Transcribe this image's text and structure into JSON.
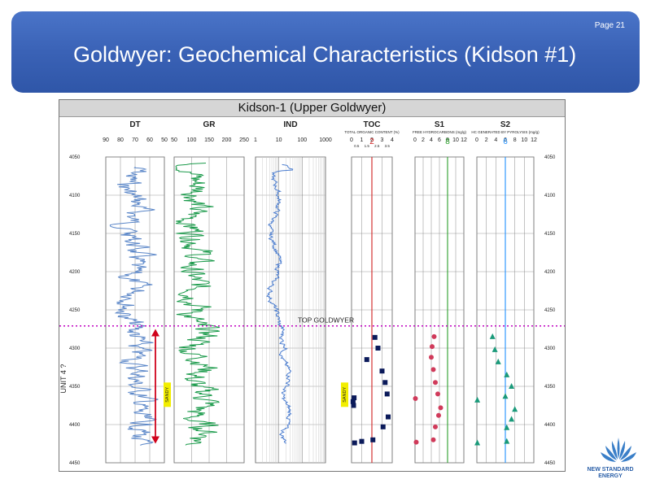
{
  "slide": {
    "page_number": "Page 21",
    "title": "Goldwyer: Geochemical Characteristics (Kidson #1)"
  },
  "logo": {
    "text_line1": "NEW STANDARD",
    "text_line2": "ENERGY"
  },
  "colors": {
    "banner": "#3a62b6",
    "dt_curve": "#5a86c8",
    "gr_curve": "#1a9a4a",
    "ind_curve": "#4a7ccf",
    "toc_line": "#e05050",
    "s1_line": "#2aa02a",
    "s2_line": "#1e90ff",
    "top_goldwyer": "#c000c0",
    "sandy_box": "#f2ee00",
    "unit_arrow": "#d0021b",
    "toc_marker": "#0b1a5a",
    "s1_marker": "#d03a5a",
    "s2_marker": "#1a9a7a"
  },
  "chart_data": {
    "type": "line",
    "title": "Kidson-1 (Upper Goldwyer)",
    "depth_axis": {
      "ticks": [
        4050,
        4100,
        4150,
        4200,
        4250,
        4300,
        4350,
        4400,
        4450
      ],
      "range": [
        4050,
        4450
      ]
    },
    "annotations": {
      "top_goldwyer_label": "TOP GOLDWYER",
      "top_goldwyer_depth": 4271,
      "unit_label": "UNIT 4 ?",
      "unit_range": [
        4275,
        4425
      ],
      "sandy_label": "SANDY"
    },
    "tracks": [
      {
        "key": "dt",
        "header": "DT",
        "scale_labels": [
          "90",
          "80",
          "70",
          "60",
          "50"
        ],
        "range": [
          90,
          50
        ]
      },
      {
        "key": "gr",
        "header": "GR",
        "scale_labels": [
          "50",
          "100",
          "150",
          "200",
          "250"
        ],
        "range": [
          50,
          250
        ]
      },
      {
        "key": "ind",
        "header": "IND",
        "scale_labels": [
          "1",
          "10",
          "100",
          "1000"
        ],
        "range": [
          1,
          1000
        ],
        "log": true
      },
      {
        "key": "toc",
        "header": "TOC",
        "subheader": "TOTAL ORGANIC CONTENT (%)",
        "scale_labels": [
          "0",
          "1",
          "2",
          "3",
          "4"
        ],
        "minor_labels": [
          "0.5",
          "1.5",
          "2.5",
          "3.5"
        ],
        "highlight_label": "2",
        "highlight_value": 2,
        "range": [
          0,
          4
        ]
      },
      {
        "key": "s1",
        "header": "S1",
        "subheader": "FREE HYDROCARBONS (mg/g)",
        "scale_labels": [
          "0",
          "2",
          "4",
          "6",
          "8",
          "10",
          "12"
        ],
        "highlight_label": "8",
        "highlight_value": 8,
        "range": [
          0,
          12
        ]
      },
      {
        "key": "s2",
        "header": "S2",
        "subheader": "HC GENERATED BY PYROLYSIS (mg/g)",
        "scale_labels": [
          "0",
          "2",
          "4",
          "6",
          "8",
          "10",
          "12"
        ],
        "highlight_label": "6",
        "highlight_value": 6,
        "range": [
          0,
          12
        ]
      }
    ],
    "toc_points": [
      [
        4286,
        2.3
      ],
      [
        4300,
        2.6
      ],
      [
        4315,
        1.5
      ],
      [
        4330,
        3.0
      ],
      [
        4345,
        3.3
      ],
      [
        4360,
        3.5
      ],
      [
        4365,
        0.25
      ],
      [
        4370,
        0.15
      ],
      [
        4375,
        0.2
      ],
      [
        4390,
        3.6
      ],
      [
        4403,
        3.1
      ],
      [
        4420,
        2.1
      ],
      [
        4422,
        1.0
      ],
      [
        4424,
        0.3
      ]
    ],
    "s1_points": [
      [
        4285,
        4.7
      ],
      [
        4298,
        4.2
      ],
      [
        4312,
        4.0
      ],
      [
        4328,
        4.5
      ],
      [
        4345,
        5.0
      ],
      [
        4360,
        5.6
      ],
      [
        4366,
        0.1
      ],
      [
        4378,
        6.3
      ],
      [
        4388,
        5.8
      ],
      [
        4403,
        5.0
      ],
      [
        4420,
        4.5
      ],
      [
        4423,
        0.3
      ]
    ],
    "s2_points": [
      [
        4285,
        3.3
      ],
      [
        4302,
        3.8
      ],
      [
        4318,
        4.5
      ],
      [
        4335,
        6.3
      ],
      [
        4350,
        7.3
      ],
      [
        4363,
        6.0
      ],
      [
        4368,
        0.1
      ],
      [
        4380,
        8.0
      ],
      [
        4393,
        7.3
      ],
      [
        4404,
        6.3
      ],
      [
        4422,
        6.3
      ],
      [
        4424,
        0.1
      ]
    ],
    "dt_curve": {
      "min": 54,
      "max": 87,
      "note": "sonic transit time trace"
    },
    "gr_curve": {
      "min": 55,
      "max": 180,
      "note": "gamma ray trace"
    },
    "ind_curve": {
      "min": 2,
      "max": 80,
      "note": "induction resistivity trace"
    }
  }
}
